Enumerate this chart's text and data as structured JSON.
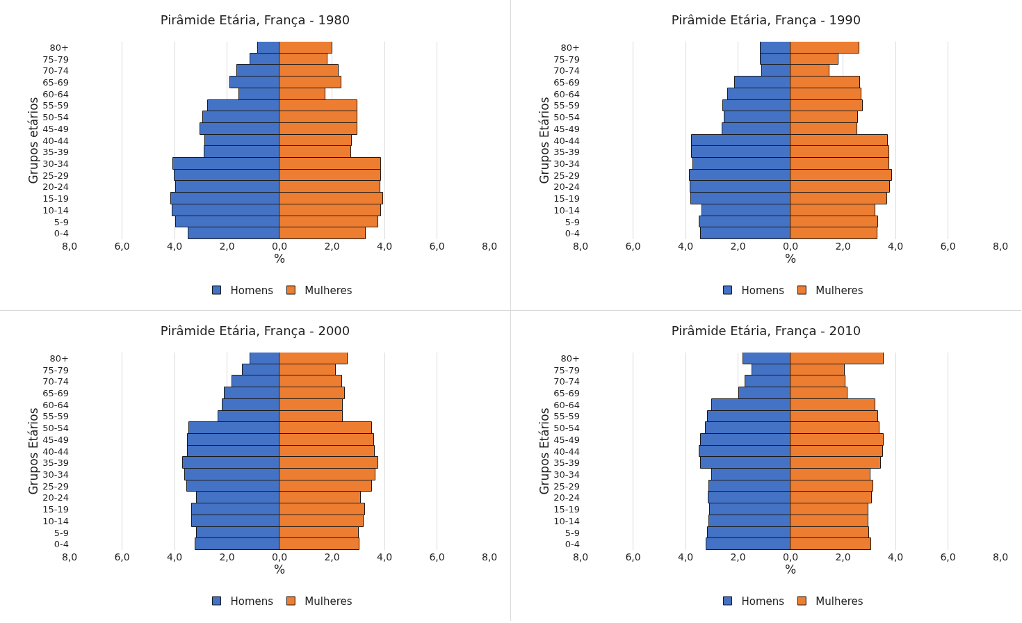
{
  "chart_data": [
    {
      "type": "bar",
      "orientation": "horizontal",
      "stacked": true,
      "title": "Pirâmide Etária, França - 1980",
      "xlabel": "%",
      "ylabel": "Grupos etários",
      "categories": [
        "80+",
        "75-79",
        "70-74",
        "65-69",
        "60-64",
        "55-59",
        "50-54",
        "45-49",
        "40-44",
        "35-39",
        "30-34",
        "25-29",
        "20-24",
        "15-19",
        "10-14",
        "5-9",
        "0-4"
      ],
      "series": [
        {
          "name": "Homens",
          "color": "#4472c4",
          "values": [
            -0.82,
            -1.12,
            -1.61,
            -1.89,
            -1.53,
            -2.73,
            -2.92,
            -3.02,
            -2.84,
            -2.87,
            -4.06,
            -4.01,
            -3.94,
            -4.12,
            -4.07,
            -3.96,
            -3.48
          ]
        },
        {
          "name": "Mulheres",
          "color": "#ed7d31",
          "values": [
            2.02,
            1.83,
            2.26,
            2.37,
            1.75,
            2.96,
            2.96,
            2.97,
            2.76,
            2.72,
            3.88,
            3.87,
            3.85,
            3.95,
            3.88,
            3.76,
            3.29
          ]
        }
      ],
      "xlim": [
        -8,
        8
      ],
      "xticks": [
        {
          "value": -8,
          "label": "8,0"
        },
        {
          "value": -6,
          "label": "6,0"
        },
        {
          "value": -4,
          "label": "4,0"
        },
        {
          "value": -2,
          "label": "2,0"
        },
        {
          "value": 0,
          "label": "0,0"
        },
        {
          "value": 2,
          "label": "2,0"
        },
        {
          "value": 4,
          "label": "4,0"
        },
        {
          "value": 6,
          "label": "6,0"
        },
        {
          "value": 8,
          "label": "8,0"
        }
      ],
      "grid": "x",
      "legend": "bottom"
    },
    {
      "type": "bar",
      "orientation": "horizontal",
      "stacked": true,
      "title": "Pirâmide Etária, França - 1990",
      "xlabel": "%",
      "ylabel": "Grupos Etários",
      "categories": [
        "80+",
        "75-79",
        "70-74",
        "65-69",
        "60-64",
        "55-59",
        "50-54",
        "45-49",
        "40-44",
        "35-39",
        "30-34",
        "25-29",
        "20-24",
        "15-19",
        "10-14",
        "5-9",
        "0-4"
      ],
      "series": [
        {
          "name": "Homens",
          "color": "#4472c4",
          "values": [
            -1.13,
            -1.13,
            -1.08,
            -2.12,
            -2.39,
            -2.58,
            -2.52,
            -2.59,
            -3.76,
            -3.76,
            -3.71,
            -3.83,
            -3.81,
            -3.79,
            -3.37,
            -3.46,
            -3.43
          ]
        },
        {
          "name": "Mulheres",
          "color": "#ed7d31",
          "values": [
            2.62,
            1.84,
            1.49,
            2.64,
            2.71,
            2.76,
            2.58,
            2.55,
            3.71,
            3.77,
            3.75,
            3.86,
            3.78,
            3.68,
            3.23,
            3.33,
            3.3
          ]
        }
      ],
      "xlim": [
        -8,
        8
      ],
      "xticks": [
        {
          "value": -8,
          "label": "8,0"
        },
        {
          "value": -6,
          "label": "6,0"
        },
        {
          "value": -4,
          "label": "4,0"
        },
        {
          "value": -2,
          "label": "2,0"
        },
        {
          "value": 0,
          "label": "0,0"
        },
        {
          "value": 2,
          "label": "2,0"
        },
        {
          "value": 4,
          "label": "4,0"
        },
        {
          "value": 6,
          "label": "6,0"
        },
        {
          "value": 8,
          "label": "8,0"
        }
      ],
      "grid": "x",
      "legend": "bottom"
    },
    {
      "type": "bar",
      "orientation": "horizontal",
      "stacked": true,
      "title": "Pirâmide Etária, França - 2000",
      "xlabel": "%",
      "ylabel": "Grupos Etários",
      "categories": [
        "80+",
        "75-79",
        "70-74",
        "65-69",
        "60-64",
        "55-59",
        "50-54",
        "45-49",
        "40-44",
        "35-39",
        "30-34",
        "25-29",
        "20-24",
        "15-19",
        "10-14",
        "5-9",
        "0-4"
      ],
      "series": [
        {
          "name": "Homens",
          "color": "#4472c4",
          "values": [
            -1.12,
            -1.41,
            -1.81,
            -2.1,
            -2.18,
            -2.33,
            -3.44,
            -3.51,
            -3.51,
            -3.67,
            -3.6,
            -3.52,
            -3.16,
            -3.35,
            -3.33,
            -3.14,
            -3.2
          ]
        },
        {
          "name": "Mulheres",
          "color": "#ed7d31",
          "values": [
            2.6,
            2.14,
            2.38,
            2.5,
            2.4,
            2.4,
            3.51,
            3.59,
            3.64,
            3.75,
            3.65,
            3.53,
            3.11,
            3.26,
            3.2,
            3.02,
            3.05
          ]
        }
      ],
      "xlim": [
        -8,
        8
      ],
      "xticks": [
        {
          "value": -8,
          "label": "8,0"
        },
        {
          "value": -6,
          "label": "6,0"
        },
        {
          "value": -4,
          "label": "4,0"
        },
        {
          "value": -2,
          "label": "2,0"
        },
        {
          "value": 0,
          "label": "0,0"
        },
        {
          "value": 2,
          "label": "2,0"
        },
        {
          "value": 4,
          "label": "4,0"
        },
        {
          "value": 6,
          "label": "6,0"
        },
        {
          "value": 8,
          "label": "8,0"
        }
      ],
      "grid": "x",
      "legend": "bottom"
    },
    {
      "type": "bar",
      "orientation": "horizontal",
      "stacked": true,
      "title": "Pirâmide Etária, França - 2010",
      "xlabel": "%",
      "ylabel": "Grupos Etários",
      "categories": [
        "80+",
        "75-79",
        "70-74",
        "65-69",
        "60-64",
        "55-59",
        "50-54",
        "45-49",
        "40-44",
        "35-39",
        "30-34",
        "25-29",
        "20-24",
        "15-19",
        "10-14",
        "5-9",
        "0-4"
      ],
      "series": [
        {
          "name": "Homens",
          "color": "#4472c4",
          "values": [
            -1.81,
            -1.47,
            -1.71,
            -1.95,
            -2.99,
            -3.14,
            -3.23,
            -3.43,
            -3.46,
            -3.42,
            -3.0,
            -3.1,
            -3.13,
            -3.08,
            -3.1,
            -3.15,
            -3.2
          ]
        },
        {
          "name": "Mulheres",
          "color": "#ed7d31",
          "values": [
            3.55,
            2.07,
            2.1,
            2.18,
            3.23,
            3.33,
            3.39,
            3.54,
            3.52,
            3.44,
            3.05,
            3.15,
            3.1,
            2.96,
            2.96,
            3.0,
            3.08
          ]
        }
      ],
      "xlim": [
        -8,
        8
      ],
      "xticks": [
        {
          "value": -8,
          "label": "8,0"
        },
        {
          "value": -6,
          "label": "6,0"
        },
        {
          "value": -4,
          "label": "4,0"
        },
        {
          "value": -2,
          "label": "2,0"
        },
        {
          "value": 0,
          "label": "0,0"
        },
        {
          "value": 2,
          "label": "2,0"
        },
        {
          "value": 4,
          "label": "4,0"
        },
        {
          "value": 6,
          "label": "6,0"
        },
        {
          "value": 8,
          "label": "8,0"
        }
      ],
      "grid": "x",
      "legend": "bottom"
    }
  ]
}
